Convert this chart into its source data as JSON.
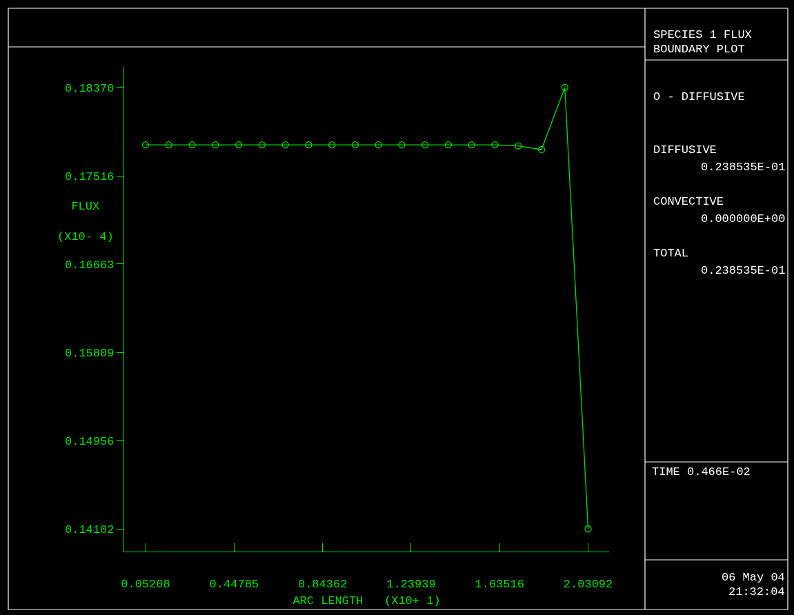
{
  "chart_data": {
    "type": "line",
    "xlabel": "ARC LENGTH   (X10+ 1)",
    "ylabel": "FLUX\n(X10- 4)",
    "x": [
      0.05208,
      0.15623,
      0.26038,
      0.36453,
      0.46868,
      0.57283,
      0.67698,
      0.78113,
      0.88528,
      0.98943,
      1.09358,
      1.19773,
      1.30188,
      1.40603,
      1.51018,
      1.61433,
      1.71848,
      1.82263,
      1.92678,
      2.03092
    ],
    "series": [
      {
        "color": "#00e000",
        "values": [
          0.17816,
          0.17816,
          0.17816,
          0.17816,
          0.17816,
          0.17816,
          0.17816,
          0.17816,
          0.17816,
          0.17816,
          0.17816,
          0.17816,
          0.17816,
          0.17816,
          0.17816,
          0.17816,
          0.17806,
          0.1777,
          0.1837,
          0.14102
        ]
      }
    ],
    "xlim": [
      -0.0436,
      2.1249
    ],
    "ylim": [
      0.13882,
      0.1857
    ],
    "xticks": [
      0.05208,
      0.44785,
      0.84362,
      1.23939,
      1.63516,
      2.03092
    ],
    "yticks": [
      {
        "value": 0.14102,
        "label": "0.14102"
      },
      {
        "value": 0.14956,
        "label": "0.14956"
      },
      {
        "value": 0.15809,
        "label": "0.15809"
      },
      {
        "value": 0.16663,
        "label": "0.16663"
      },
      {
        "value": 0.17516,
        "label": "0.17516"
      },
      {
        "value": 0.1837,
        "label": "0.18370"
      }
    ],
    "grid": false,
    "marker": "circle",
    "line_style": "solid",
    "annotations": [
      "SPECIES 1 FLUX",
      "BOUNDARY PLOT",
      "O - DIFFUSIVE",
      "DIFFUSIVE",
      "0.238535E-01",
      "CONVECTIVE",
      "0.000000E+00",
      "TOTAL",
      "0.238535E-01",
      "TIME 0.466E-02",
      "06 May 04",
      "21:32:04"
    ]
  }
}
